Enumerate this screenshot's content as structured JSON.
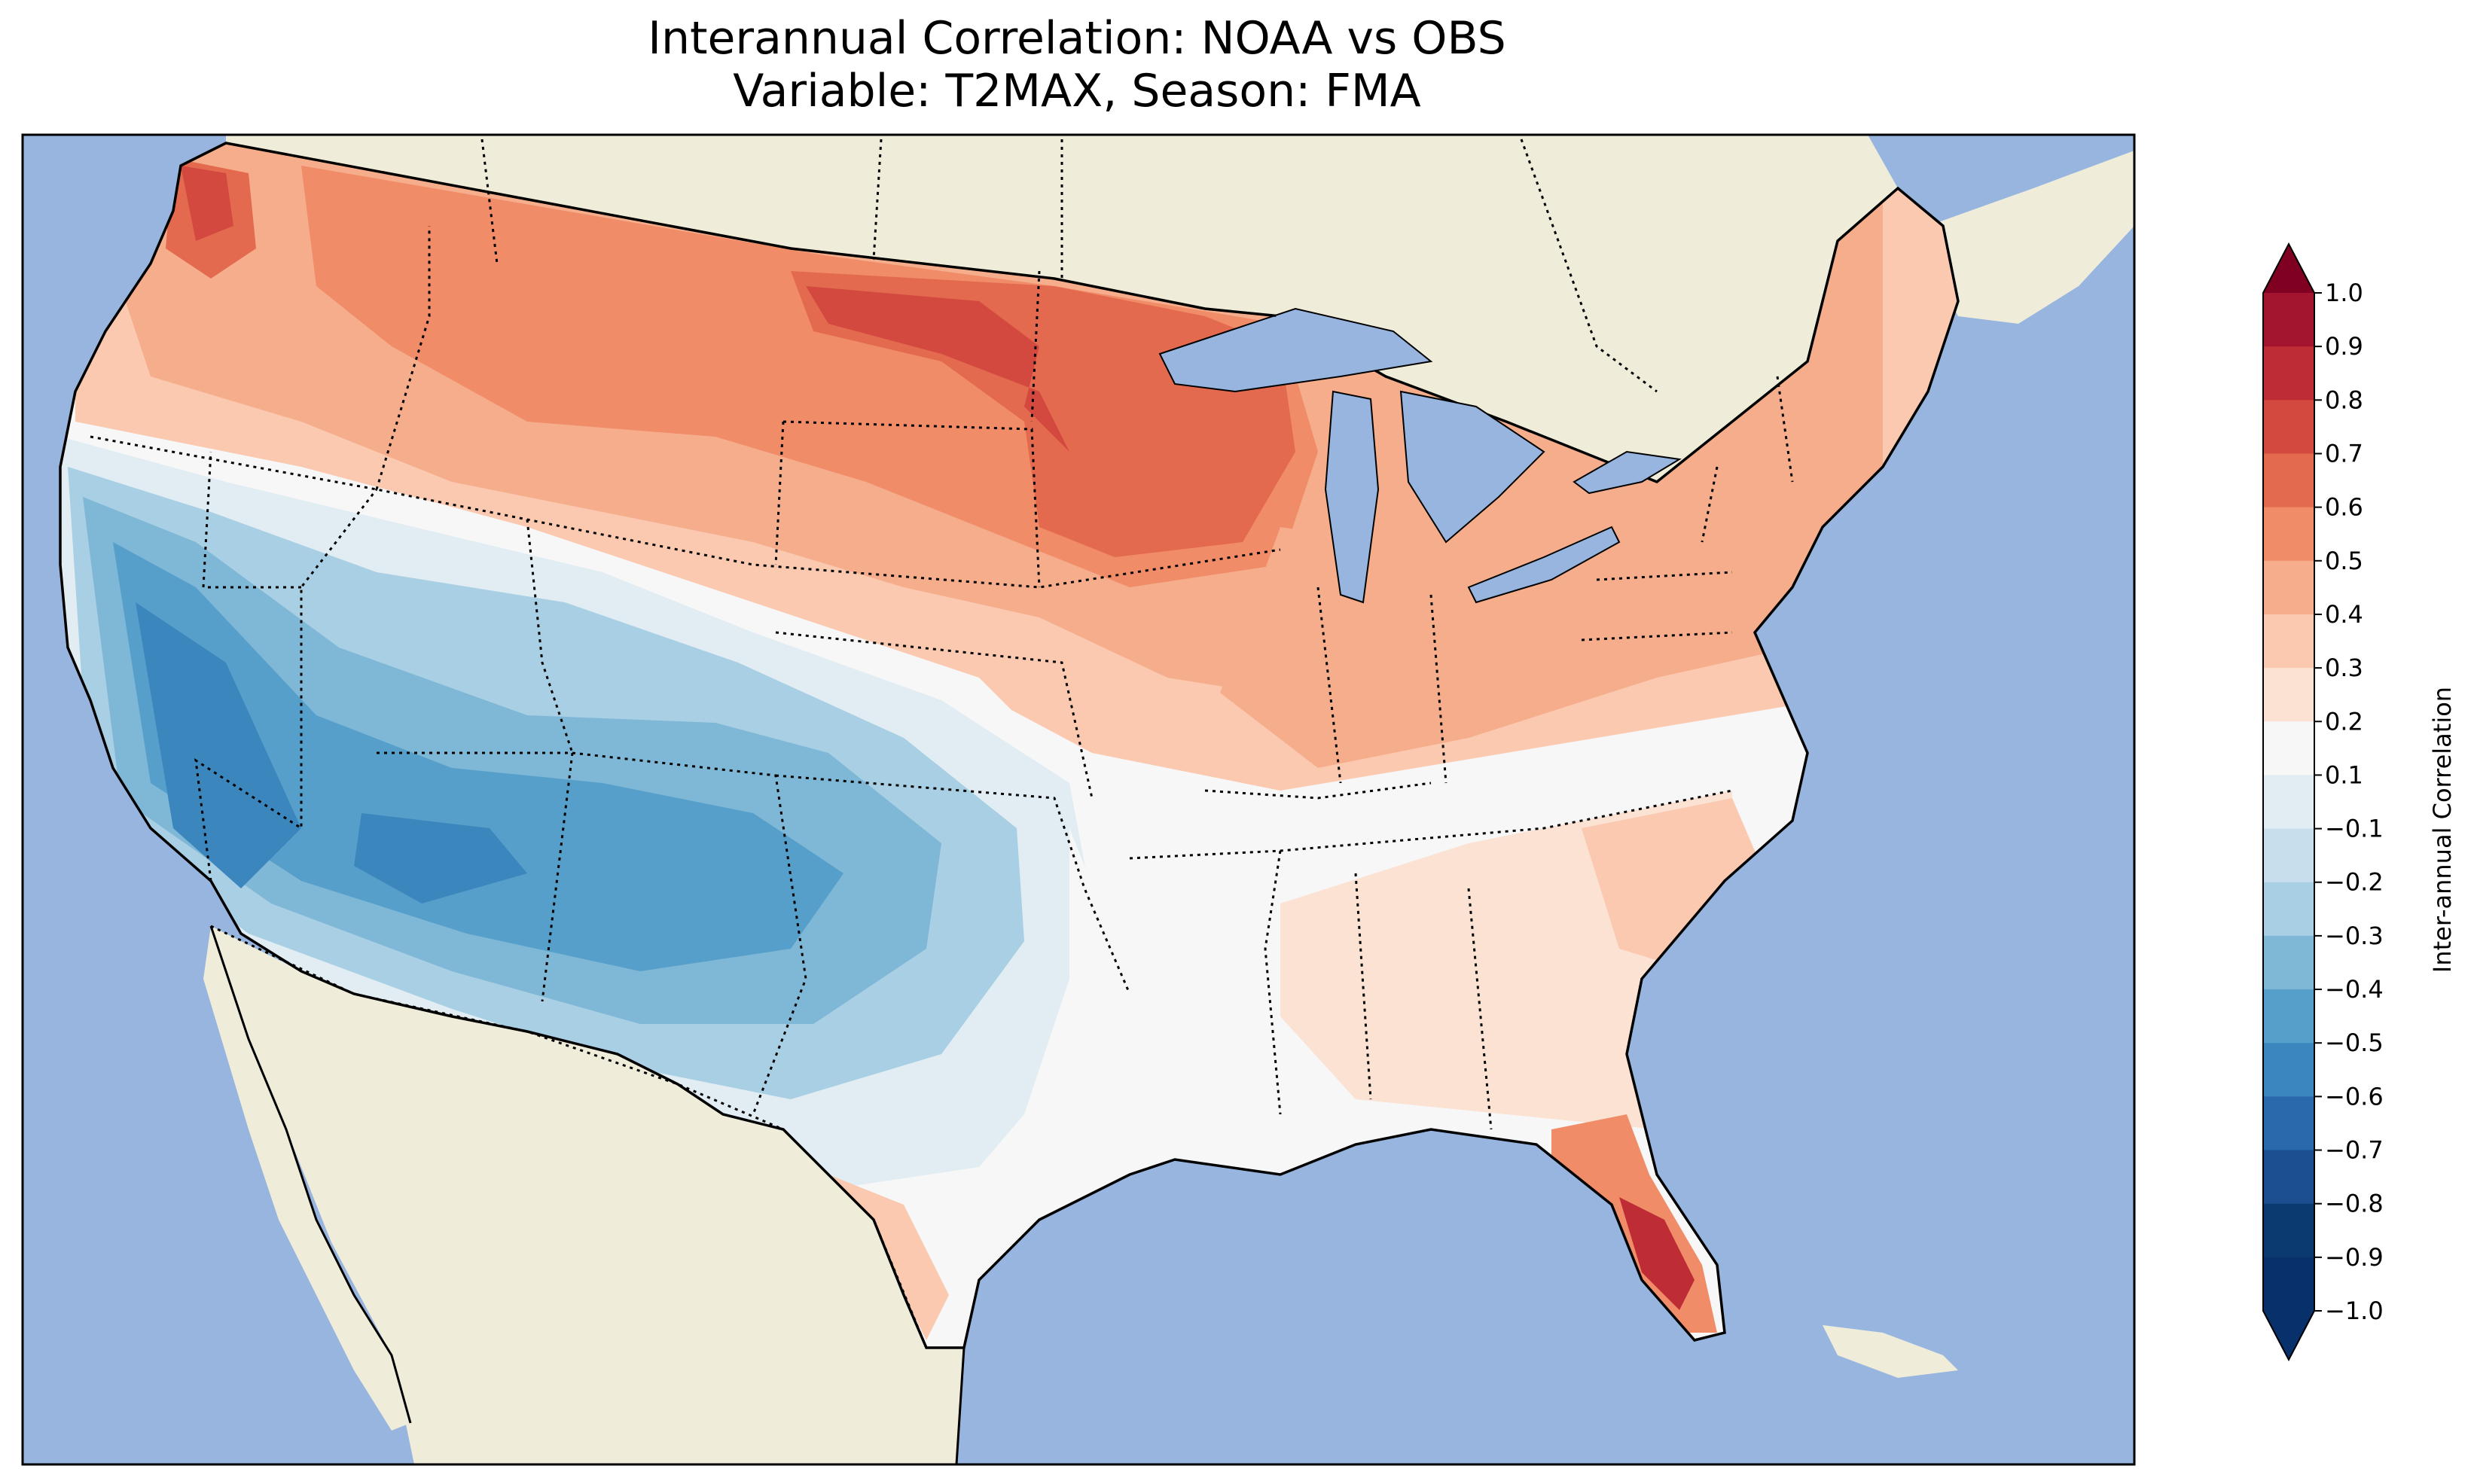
{
  "title": {
    "line1": "Interannual Correlation: NOAA vs OBS",
    "line2": "Variable: T2MAX, Season: FMA"
  },
  "colorbar": {
    "label": "Inter-annual Correlation",
    "ticks": [
      "1.0",
      "0.9",
      "0.8",
      "0.7",
      "0.6",
      "0.5",
      "0.4",
      "0.3",
      "0.2",
      "0.1",
      "−0.1",
      "−0.2",
      "−0.3",
      "−0.4",
      "−0.5",
      "−0.6",
      "−0.7",
      "−0.8",
      "−0.9",
      "−1.0"
    ],
    "colors": [
      "#7f0020",
      "#a3152e",
      "#be2c36",
      "#d3483f",
      "#e36a4f",
      "#f08c68",
      "#f6ad8c",
      "#fac9b0",
      "#fbe2d3",
      "#f7f7f7",
      "#e1edf3",
      "#c8deec",
      "#a8cfe3",
      "#7fb7d6",
      "#559fca",
      "#3c86be",
      "#2a69ab",
      "#1b4f91",
      "#0a3a70",
      "#08306b"
    ],
    "extend": "both"
  },
  "map_colors": {
    "ocean": "#98b5e0",
    "land": "#efedda",
    "lakes": "#98b5e0"
  },
  "map_regions": [
    {
      "name": "pacific-northwest",
      "value": 0.45
    },
    {
      "name": "northern-rockies",
      "value": 0.4
    },
    {
      "name": "northern-plains",
      "value": 0.55
    },
    {
      "name": "upper-midwest",
      "value": 0.55
    },
    {
      "name": "great-lakes",
      "value": 0.4
    },
    {
      "name": "northeast",
      "value": 0.3
    },
    {
      "name": "central-plains",
      "value": 0.1
    },
    {
      "name": "southwest",
      "value": -0.6
    },
    {
      "name": "colorado-utah",
      "value": -0.45
    },
    {
      "name": "texas",
      "value": -0.1
    },
    {
      "name": "southeast",
      "value": 0.15
    },
    {
      "name": "florida",
      "value": 0.7
    }
  ]
}
